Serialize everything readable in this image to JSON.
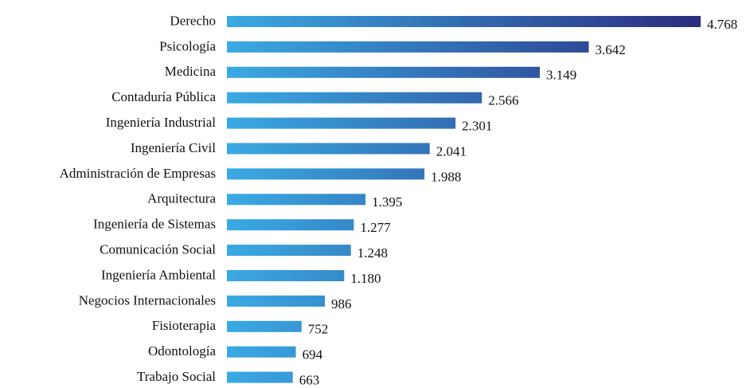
{
  "chart_data": {
    "type": "bar",
    "orientation": "horizontal",
    "categories": [
      "Derecho",
      "Psicología",
      "Medicina",
      "Contaduría Pública",
      "Ingeniería Industrial",
      "Ingeniería Civil",
      "Administración de Empresas",
      "Arquitectura",
      "Ingeniería de Sistemas",
      "Comunicación Social",
      "Ingeniería Ambiental",
      "Negocios Internacionales",
      "Fisioterapia",
      "Odontología",
      "Trabajo Social"
    ],
    "values": [
      4768,
      3642,
      3149,
      2566,
      2301,
      2041,
      1988,
      1395,
      1277,
      1248,
      1180,
      986,
      752,
      694,
      663
    ],
    "value_labels": [
      "4.768",
      "3.642",
      "3.149",
      "2.566",
      "2.301",
      "2.041",
      "1.988",
      "1.395",
      "1.277",
      "1.248",
      "1.180",
      "986",
      "752",
      "694",
      "663"
    ],
    "title": "",
    "xlabel": "",
    "ylabel": "",
    "xlim": [
      0,
      4768
    ],
    "grid": false,
    "legend": "none",
    "colors": {
      "gradient_start": "#3aaae3",
      "gradient_end": "#2b2c7f"
    }
  }
}
